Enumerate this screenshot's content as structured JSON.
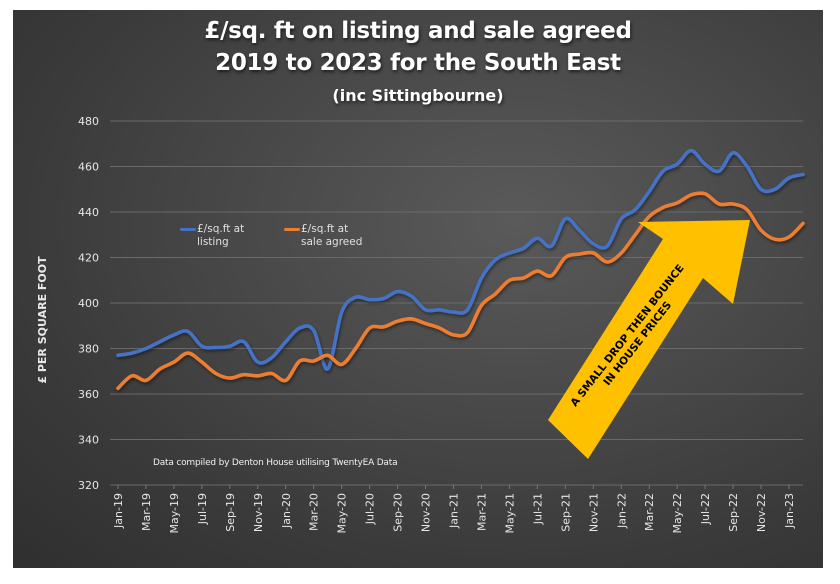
{
  "chart_data": {
    "type": "line",
    "title": "£/sq. ft on listing and sale agreed",
    "title_line2": "2019 to 2023 for the South East",
    "subtitle": "(inc Sittingbourne)",
    "xlabel": "",
    "ylabel": "£ PER SQUARE FOOT",
    "ylim": [
      320,
      480
    ],
    "yticks": [
      320,
      340,
      360,
      380,
      400,
      420,
      440,
      460,
      480
    ],
    "grid": true,
    "legend_placement": "upper-left inside plot",
    "x": [
      "Jan-19",
      "Feb-19",
      "Mar-19",
      "Apr-19",
      "May-19",
      "Jun-19",
      "Jul-19",
      "Aug-19",
      "Sep-19",
      "Oct-19",
      "Nov-19",
      "Dec-19",
      "Jan-20",
      "Feb-20",
      "Mar-20",
      "Apr-20",
      "May-20",
      "Jun-20",
      "Jul-20",
      "Aug-20",
      "Sep-20",
      "Oct-20",
      "Nov-20",
      "Dec-20",
      "Jan-21",
      "Feb-21",
      "Mar-21",
      "Apr-21",
      "May-21",
      "Jun-21",
      "Jul-21",
      "Aug-21",
      "Sep-21",
      "Oct-21",
      "Nov-21",
      "Dec-21",
      "Jan-22",
      "Feb-22",
      "Mar-22",
      "Apr-22",
      "May-22",
      "Jun-22",
      "Jul-22",
      "Aug-22",
      "Sep-22",
      "Oct-22",
      "Nov-22",
      "Dec-22",
      "Jan-23",
      "Feb-23"
    ],
    "xtick_labels": [
      "Jan-19",
      "Mar-19",
      "May-19",
      "Jul-19",
      "Sep-19",
      "Nov-19",
      "Jan-20",
      "Mar-20",
      "May-20",
      "Jul-20",
      "Sep-20",
      "Nov-20",
      "Jan-21",
      "Mar-21",
      "May-21",
      "Jul-21",
      "Sep-21",
      "Nov-21",
      "Jan-22",
      "Mar-22",
      "May-22",
      "Jul-22",
      "Sep-22",
      "Nov-22",
      "Jan-23"
    ],
    "series": [
      {
        "name": "£/sq.ft at listing",
        "legend_line1": "£/sq.ft at",
        "legend_line2": "listing",
        "color": "#4472c4",
        "values": [
          377,
          378,
          380,
          383,
          386,
          387.5,
          381,
          380.5,
          381,
          383,
          374,
          376,
          383,
          389,
          388,
          371,
          396,
          402.5,
          401.5,
          402,
          405,
          403,
          397,
          397,
          396,
          397,
          411,
          419,
          422,
          424,
          428.5,
          425,
          437,
          432,
          426,
          425,
          437,
          441,
          449,
          458,
          461,
          467,
          461,
          458,
          466,
          460,
          450,
          450,
          455,
          456.5
        ]
      },
      {
        "name": "£/sq.ft at sale agreed",
        "legend_line1": "£/sq.ft at",
        "legend_line2": "sale agreed",
        "color": "#ed7d31",
        "values": [
          362.5,
          368,
          366,
          371,
          374,
          378,
          374,
          369,
          367,
          368.5,
          368,
          369,
          366,
          374.5,
          374.5,
          377,
          373,
          380,
          389,
          389.5,
          392,
          393,
          391,
          389,
          386,
          387,
          399,
          404,
          410,
          411,
          414,
          412,
          420,
          421.5,
          422,
          418,
          422,
          430,
          438,
          442,
          444,
          447.5,
          448,
          443.5,
          443.5,
          441,
          432,
          428,
          429,
          435
        ]
      }
    ],
    "annotations": [
      {
        "text": "Data compiled by Denton House utilising TwentyEA Data"
      },
      {
        "text_line1": "A SMALL DROP THEN BOUNCE",
        "text_line2": "IN HOUSE PRICES",
        "color": "#ffc000",
        "shape": "arrow-up-right"
      }
    ]
  }
}
